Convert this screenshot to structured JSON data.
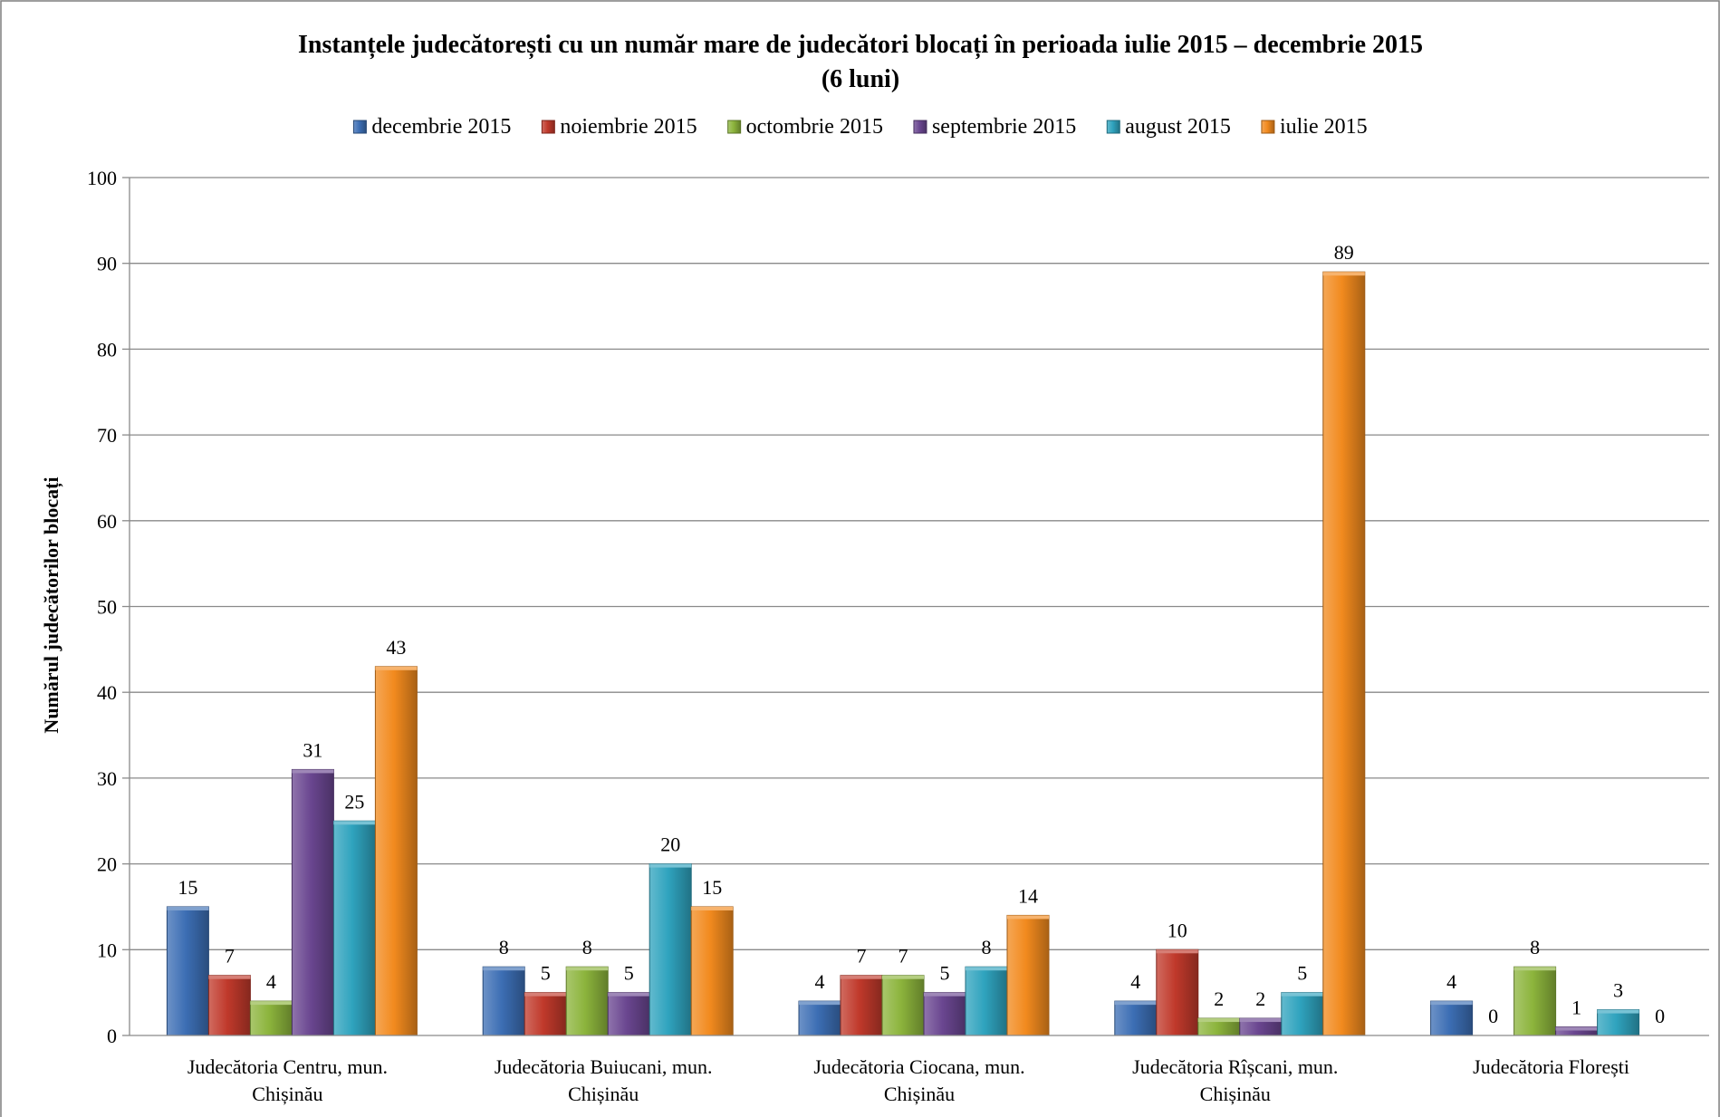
{
  "chart_data": {
    "type": "bar",
    "title": "Instanțele judecătorești cu un număr mare de judecători blocați în perioada iulie 2015 – decembrie 2015",
    "subtitle": "(6 luni)",
    "xlabel": "",
    "ylabel": "Numărul judecătorilor blocați",
    "ylim": [
      0,
      100
    ],
    "yticks": [
      0,
      10,
      20,
      30,
      40,
      50,
      60,
      70,
      80,
      90,
      100
    ],
    "grid": true,
    "legend_position": "top",
    "categories": [
      [
        "Judecătoria Centru, mun.",
        "Chișinău"
      ],
      [
        "Judecătoria Buiucani, mun.",
        "Chișinău"
      ],
      [
        "Judecătoria Ciocana, mun.",
        "Chișinău"
      ],
      [
        "Judecătoria Rîșcani, mun.",
        "Chișinău"
      ],
      [
        "Judecătoria Florești"
      ]
    ],
    "series": [
      {
        "name": "decembrie 2015",
        "color": "#3C6EB4",
        "values": [
          15,
          8,
          4,
          4,
          4
        ]
      },
      {
        "name": "noiembrie 2015",
        "color": "#C0392B",
        "values": [
          7,
          5,
          7,
          10,
          0
        ]
      },
      {
        "name": "octombrie 2015",
        "color": "#8CB43C",
        "values": [
          4,
          8,
          7,
          2,
          8
        ]
      },
      {
        "name": "septembrie 2015",
        "color": "#6A4690",
        "values": [
          31,
          5,
          5,
          2,
          1
        ]
      },
      {
        "name": "august 2015",
        "color": "#2FA3BE",
        "values": [
          25,
          20,
          8,
          5,
          3
        ]
      },
      {
        "name": "iulie 2015",
        "color": "#F28A1E",
        "values": [
          43,
          15,
          14,
          89,
          0
        ]
      }
    ]
  }
}
